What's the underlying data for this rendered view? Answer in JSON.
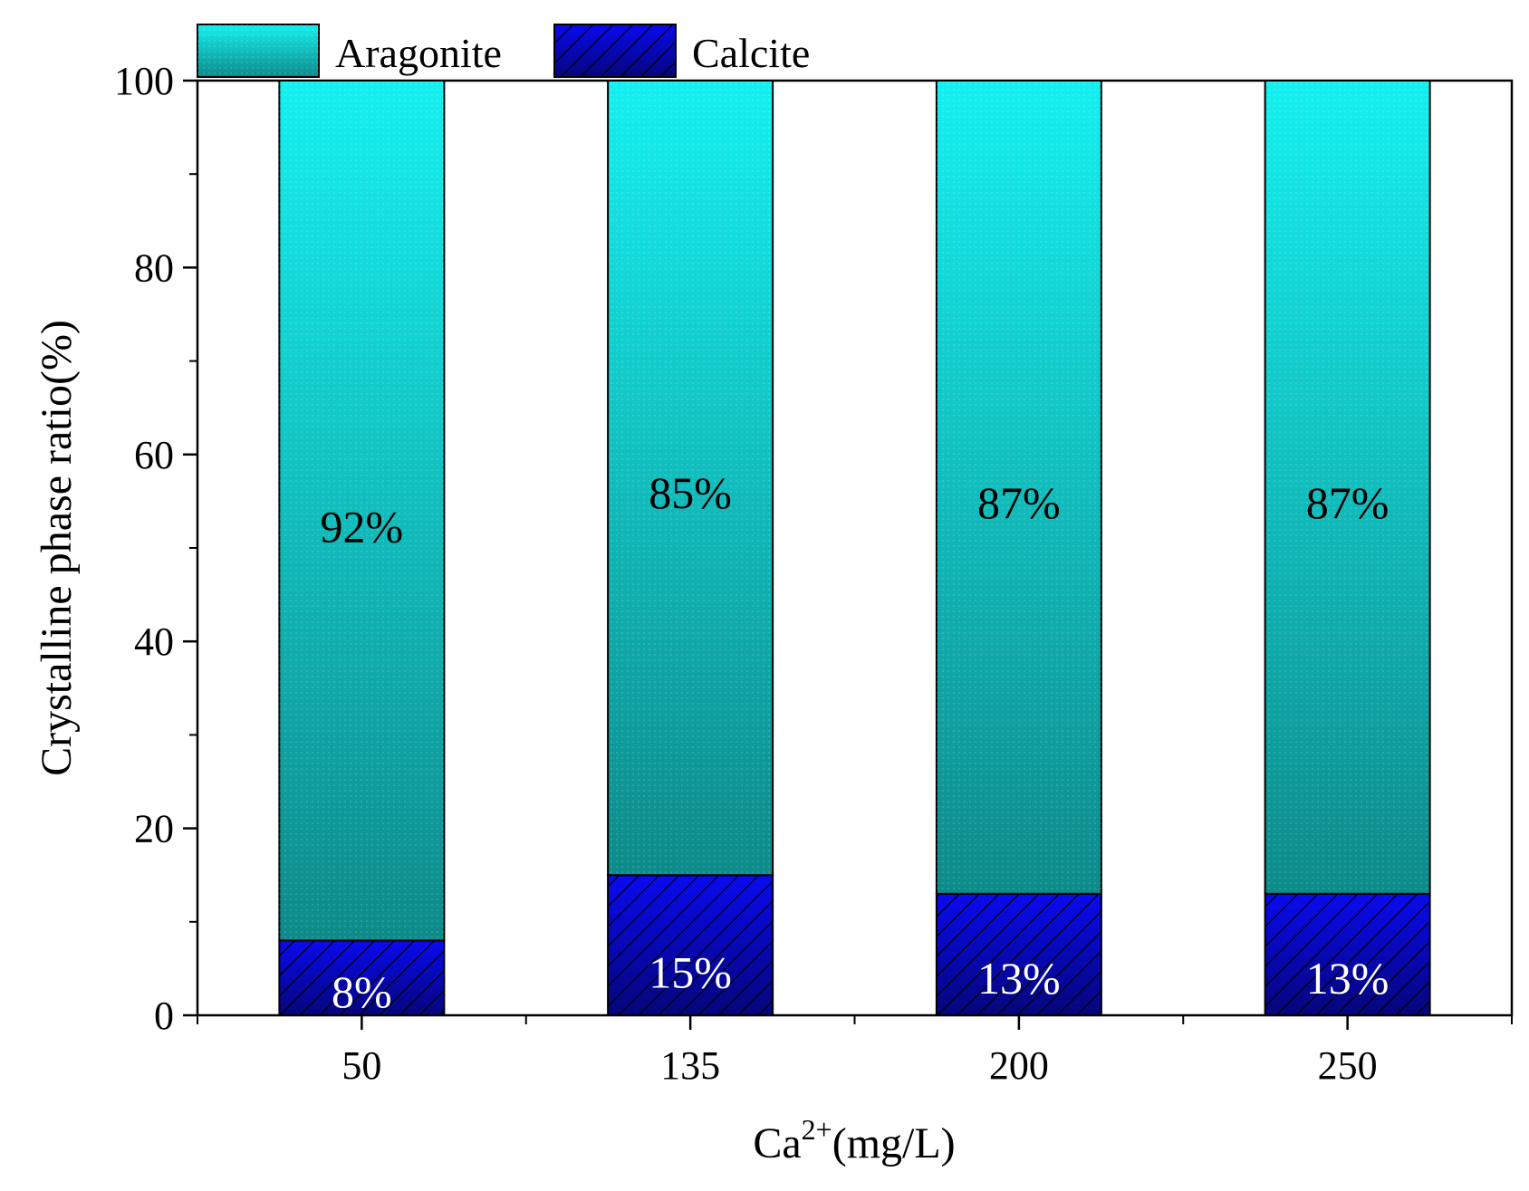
{
  "chart_data": {
    "type": "bar",
    "stacked": true,
    "title": "",
    "xlabel_main": "Ca",
    "xlabel_sup": "2+",
    "xlabel_rest": "(mg/L)",
    "ylabel": "Crystalline phase ratio(%)",
    "categories": [
      "50",
      "135",
      "200",
      "250"
    ],
    "series": [
      {
        "name": "Calcite",
        "values": [
          8,
          15,
          13,
          13
        ],
        "labels": [
          "8%",
          "15%",
          "13%",
          "13%"
        ],
        "color": "#0a0ae0",
        "pattern": "hatched"
      },
      {
        "name": "Aragonite",
        "values": [
          92,
          85,
          87,
          87
        ],
        "labels": [
          "92%",
          "85%",
          "87%",
          "87%"
        ],
        "color": "#11c4c4",
        "pattern": "gradient"
      }
    ],
    "ylim": [
      0,
      100
    ],
    "yticks": [
      0,
      20,
      40,
      60,
      80,
      100
    ],
    "ytick_labels": [
      "0",
      "20",
      "40",
      "60",
      "80",
      "100"
    ],
    "legend": {
      "placement": "top-center",
      "entries": [
        "Aragonite",
        "Calcite"
      ]
    },
    "grid": false
  },
  "colors": {
    "aragonite_top": "#15f0f0",
    "aragonite_bottom": "#0d8a8a",
    "calcite_top": "#0a0af0",
    "calcite_bottom": "#05057a",
    "axis": "#000000"
  }
}
